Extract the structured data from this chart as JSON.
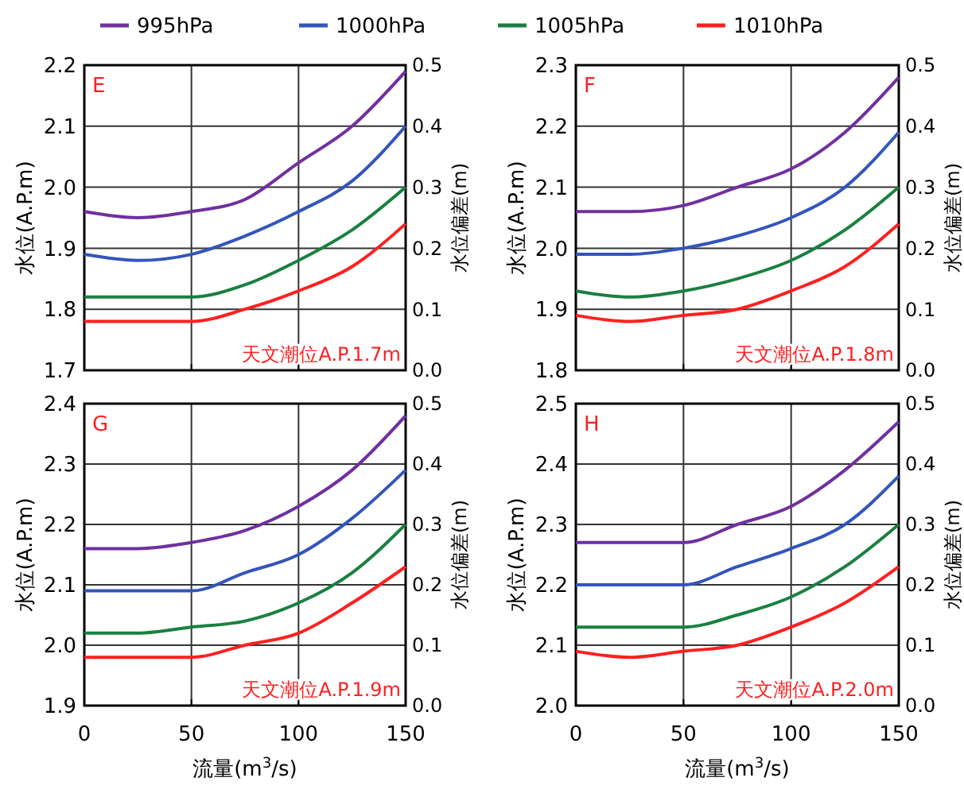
{
  "chart_data": [
    {
      "type": "line",
      "annotations": [
        "E",
        "天文潮位A.P.1.7m"
      ],
      "ylabel": "水位(A.P.m)",
      "y2label": "水位偏差(m)",
      "x": [
        0,
        25,
        50,
        75,
        100,
        125,
        150
      ],
      "xlim": [
        0,
        150
      ],
      "xticks": [
        0,
        50,
        100,
        150
      ],
      "ylim": [
        1.7,
        2.2
      ],
      "yticks": [
        {
          "value": 1.7,
          "label": "1.7"
        },
        {
          "value": 1.8,
          "label": "1.8"
        },
        {
          "value": 1.9,
          "label": "1.9"
        },
        {
          "value": 2.0,
          "label": "2.0"
        },
        {
          "value": 2.1,
          "label": "2.1"
        },
        {
          "value": 2.2,
          "label": "2.2"
        }
      ],
      "y2lim": [
        0,
        0.5
      ],
      "y2ticks": [
        {
          "value": 0,
          "label": "0.0"
        },
        {
          "value": 0.1,
          "label": "0.1"
        },
        {
          "value": 0.2,
          "label": "0.2"
        },
        {
          "value": 0.3,
          "label": "0.3"
        },
        {
          "value": 0.4,
          "label": "0.4"
        },
        {
          "value": 0.5,
          "label": "0.5"
        }
      ],
      "grid": true,
      "legend": "top",
      "tick_labels": "y",
      "series": [
        {
          "name": "995hPa",
          "color": "#7030a0",
          "values": [
            1.96,
            1.95,
            1.96,
            1.98,
            2.04,
            2.1,
            2.19
          ]
        },
        {
          "name": "1000hPa",
          "color": "#3355bb",
          "values": [
            1.89,
            1.88,
            1.89,
            1.92,
            1.96,
            2.01,
            2.1
          ]
        },
        {
          "name": "1005hPa",
          "color": "#1a8040",
          "values": [
            1.82,
            1.82,
            1.82,
            1.84,
            1.88,
            1.93,
            2.0
          ]
        },
        {
          "name": "1010hPa",
          "color": "#ff2020",
          "values": [
            1.78,
            1.78,
            1.78,
            1.8,
            1.83,
            1.87,
            1.94
          ]
        }
      ]
    },
    {
      "type": "line",
      "annotations": [
        "F",
        "天文潮位A.P.1.8m"
      ],
      "ylabel": "水位(A.P.m)",
      "y2label": "水位偏差(m)",
      "x": [
        0,
        25,
        50,
        75,
        100,
        125,
        150
      ],
      "xlim": [
        0,
        150
      ],
      "xticks": [
        0,
        50,
        100,
        150
      ],
      "ylim": [
        1.8,
        2.3
      ],
      "yticks": [
        {
          "value": 1.8,
          "label": "1.8"
        },
        {
          "value": 1.9,
          "label": "1.9"
        },
        {
          "value": 2.0,
          "label": "2.0"
        },
        {
          "value": 2.1,
          "label": "2.1"
        },
        {
          "value": 2.2,
          "label": "2.2"
        },
        {
          "value": 2.3,
          "label": "2.3"
        }
      ],
      "y2lim": [
        0,
        0.5
      ],
      "y2ticks": [
        {
          "value": 0,
          "label": "0.0"
        },
        {
          "value": 0.1,
          "label": "0.1"
        },
        {
          "value": 0.2,
          "label": "0.2"
        },
        {
          "value": 0.3,
          "label": "0.3"
        },
        {
          "value": 0.4,
          "label": "0.4"
        },
        {
          "value": 0.5,
          "label": "0.5"
        }
      ],
      "grid": true,
      "tick_labels": "y",
      "series": [
        {
          "color": "#7030a0",
          "values": [
            2.06,
            2.06,
            2.07,
            2.1,
            2.13,
            2.19,
            2.28
          ]
        },
        {
          "color": "#3355bb",
          "values": [
            1.99,
            1.99,
            2.0,
            2.02,
            2.05,
            2.1,
            2.19
          ]
        },
        {
          "color": "#1a8040",
          "values": [
            1.93,
            1.92,
            1.93,
            1.95,
            1.98,
            2.03,
            2.1
          ]
        },
        {
          "color": "#ff2020",
          "values": [
            1.89,
            1.88,
            1.89,
            1.9,
            1.93,
            1.97,
            2.04
          ]
        }
      ]
    },
    {
      "type": "line",
      "annotations": [
        "G",
        "天文潮位A.P.1.9m"
      ],
      "xlabel": "流量(m$^{3}$/s)",
      "ylabel": "水位(A.P.m)",
      "y2label": "水位偏差(m)",
      "x": [
        0,
        25,
        50,
        75,
        100,
        125,
        150
      ],
      "xlim": [
        0,
        150
      ],
      "xticks": [
        0,
        50,
        100,
        150
      ],
      "ylim": [
        1.9,
        2.4
      ],
      "yticks": [
        {
          "value": 1.9,
          "label": "1.9"
        },
        {
          "value": 2.0,
          "label": "2.0"
        },
        {
          "value": 2.1,
          "label": "2.1"
        },
        {
          "value": 2.2,
          "label": "2.2"
        },
        {
          "value": 2.3,
          "label": "2.3"
        },
        {
          "value": 2.4,
          "label": "2.4"
        }
      ],
      "y2lim": [
        0,
        0.5
      ],
      "y2ticks": [
        {
          "value": 0,
          "label": "0.0"
        },
        {
          "value": 0.1,
          "label": "0.1"
        },
        {
          "value": 0.2,
          "label": "0.2"
        },
        {
          "value": 0.3,
          "label": "0.3"
        },
        {
          "value": 0.4,
          "label": "0.4"
        },
        {
          "value": 0.5,
          "label": "0.5"
        }
      ],
      "grid": true,
      "series": [
        {
          "color": "#7030a0",
          "values": [
            2.16,
            2.16,
            2.17,
            2.19,
            2.23,
            2.29,
            2.38
          ]
        },
        {
          "color": "#3355bb",
          "values": [
            2.09,
            2.09,
            2.09,
            2.12,
            2.15,
            2.21,
            2.29
          ]
        },
        {
          "color": "#1a8040",
          "values": [
            2.02,
            2.02,
            2.03,
            2.04,
            2.07,
            2.12,
            2.2
          ]
        },
        {
          "color": "#ff2020",
          "values": [
            1.98,
            1.98,
            1.98,
            2.0,
            2.02,
            2.07,
            2.13
          ]
        }
      ]
    },
    {
      "type": "line",
      "annotations": [
        "H",
        "天文潮位A.P.2.0m"
      ],
      "xlabel": "流量(m$^{3}$/s)",
      "ylabel": "水位(A.P.m)",
      "y2label": "水位偏差(m)",
      "x": [
        0,
        25,
        50,
        75,
        100,
        125,
        150
      ],
      "xlim": [
        0,
        150
      ],
      "xticks": [
        0,
        50,
        100,
        150
      ],
      "ylim": [
        2.0,
        2.5
      ],
      "yticks": [
        {
          "value": 2.0,
          "label": "2.0"
        },
        {
          "value": 2.1,
          "label": "2.1"
        },
        {
          "value": 2.2,
          "label": "2.2"
        },
        {
          "value": 2.3,
          "label": "2.3"
        },
        {
          "value": 2.4,
          "label": "2.4"
        },
        {
          "value": 2.5,
          "label": "2.5"
        }
      ],
      "y2lim": [
        0,
        0.5
      ],
      "y2ticks": [
        {
          "value": 0,
          "label": "0.0"
        },
        {
          "value": 0.1,
          "label": "0.1"
        },
        {
          "value": 0.2,
          "label": "0.2"
        },
        {
          "value": 0.3,
          "label": "0.3"
        },
        {
          "value": 0.4,
          "label": "0.4"
        },
        {
          "value": 0.5,
          "label": "0.5"
        }
      ],
      "grid": true,
      "series": [
        {
          "color": "#7030a0",
          "values": [
            2.27,
            2.27,
            2.27,
            2.3,
            2.33,
            2.39,
            2.47
          ]
        },
        {
          "color": "#3355bb",
          "values": [
            2.2,
            2.2,
            2.2,
            2.23,
            2.26,
            2.3,
            2.38
          ]
        },
        {
          "color": "#1a8040",
          "values": [
            2.13,
            2.13,
            2.13,
            2.15,
            2.18,
            2.23,
            2.3
          ]
        },
        {
          "color": "#ff2020",
          "values": [
            2.09,
            2.08,
            2.09,
            2.1,
            2.13,
            2.17,
            2.23
          ]
        }
      ]
    }
  ]
}
